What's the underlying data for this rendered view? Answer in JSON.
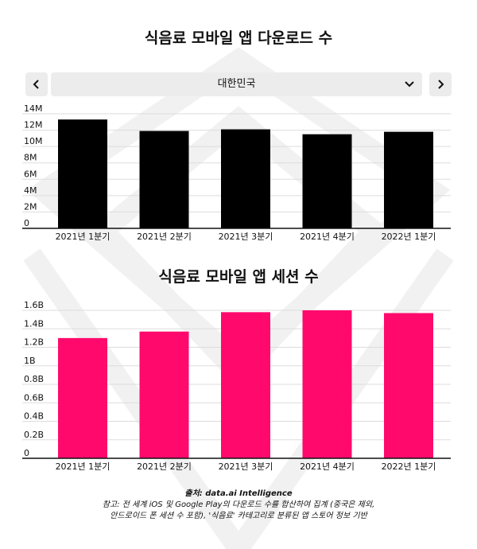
{
  "colors": {
    "download_bar": "#000000",
    "session_bar": "#ff0a6c",
    "grid": "#dddddd",
    "control_bg": "#ececec"
  },
  "region_selector": {
    "prev_icon": "chevron-left-icon",
    "next_icon": "chevron-right-icon",
    "selected": "대한민국",
    "dropdown_icon": "chevron-down-icon"
  },
  "footer": {
    "source": "출처: data.ai Intelligence",
    "note_line1": "참고: 전 세계 iOS 및 Google Play의 다운로드 수를 합산하여 집계 (중국은 제외,",
    "note_line2": "안드로이드 폰 세션 수 포함), '식음료' 카테고리로 분류된 앱 스토어 정보 기반"
  },
  "chart_data": [
    {
      "type": "bar",
      "title": "식음료 모바일 앱 다운로드 수",
      "categories": [
        "2021년 1분기",
        "2021년 2분기",
        "2021년 3분기",
        "2021년 4분기",
        "2022년 1분기"
      ],
      "values": [
        13300000,
        11900000,
        12100000,
        11500000,
        11800000
      ],
      "ylim": [
        0,
        14000000
      ],
      "yticks": [
        0,
        2000000,
        4000000,
        6000000,
        8000000,
        10000000,
        12000000,
        14000000
      ],
      "ytick_labels": [
        "0",
        "2M",
        "4M",
        "6M",
        "8M",
        "10M",
        "12M",
        "14M"
      ],
      "grid": true,
      "xlabel": "",
      "ylabel": ""
    },
    {
      "type": "bar",
      "title": "식음료 모바일 앱 세션 수",
      "categories": [
        "2021년 1분기",
        "2021년 2분기",
        "2021년 3분기",
        "2021년 4분기",
        "2022년 1분기"
      ],
      "values": [
        1300000000,
        1370000000,
        1580000000,
        1600000000,
        1570000000
      ],
      "ylim": [
        0,
        1600000000
      ],
      "yticks": [
        0,
        200000000,
        400000000,
        600000000,
        800000000,
        1000000000,
        1200000000,
        1400000000,
        1600000000
      ],
      "ytick_labels": [
        "0",
        "0.2B",
        "0.4B",
        "0.6B",
        "0.8B",
        "1B",
        "1.2B",
        "1.4B",
        "1.6B"
      ],
      "grid": true,
      "xlabel": "",
      "ylabel": ""
    }
  ]
}
